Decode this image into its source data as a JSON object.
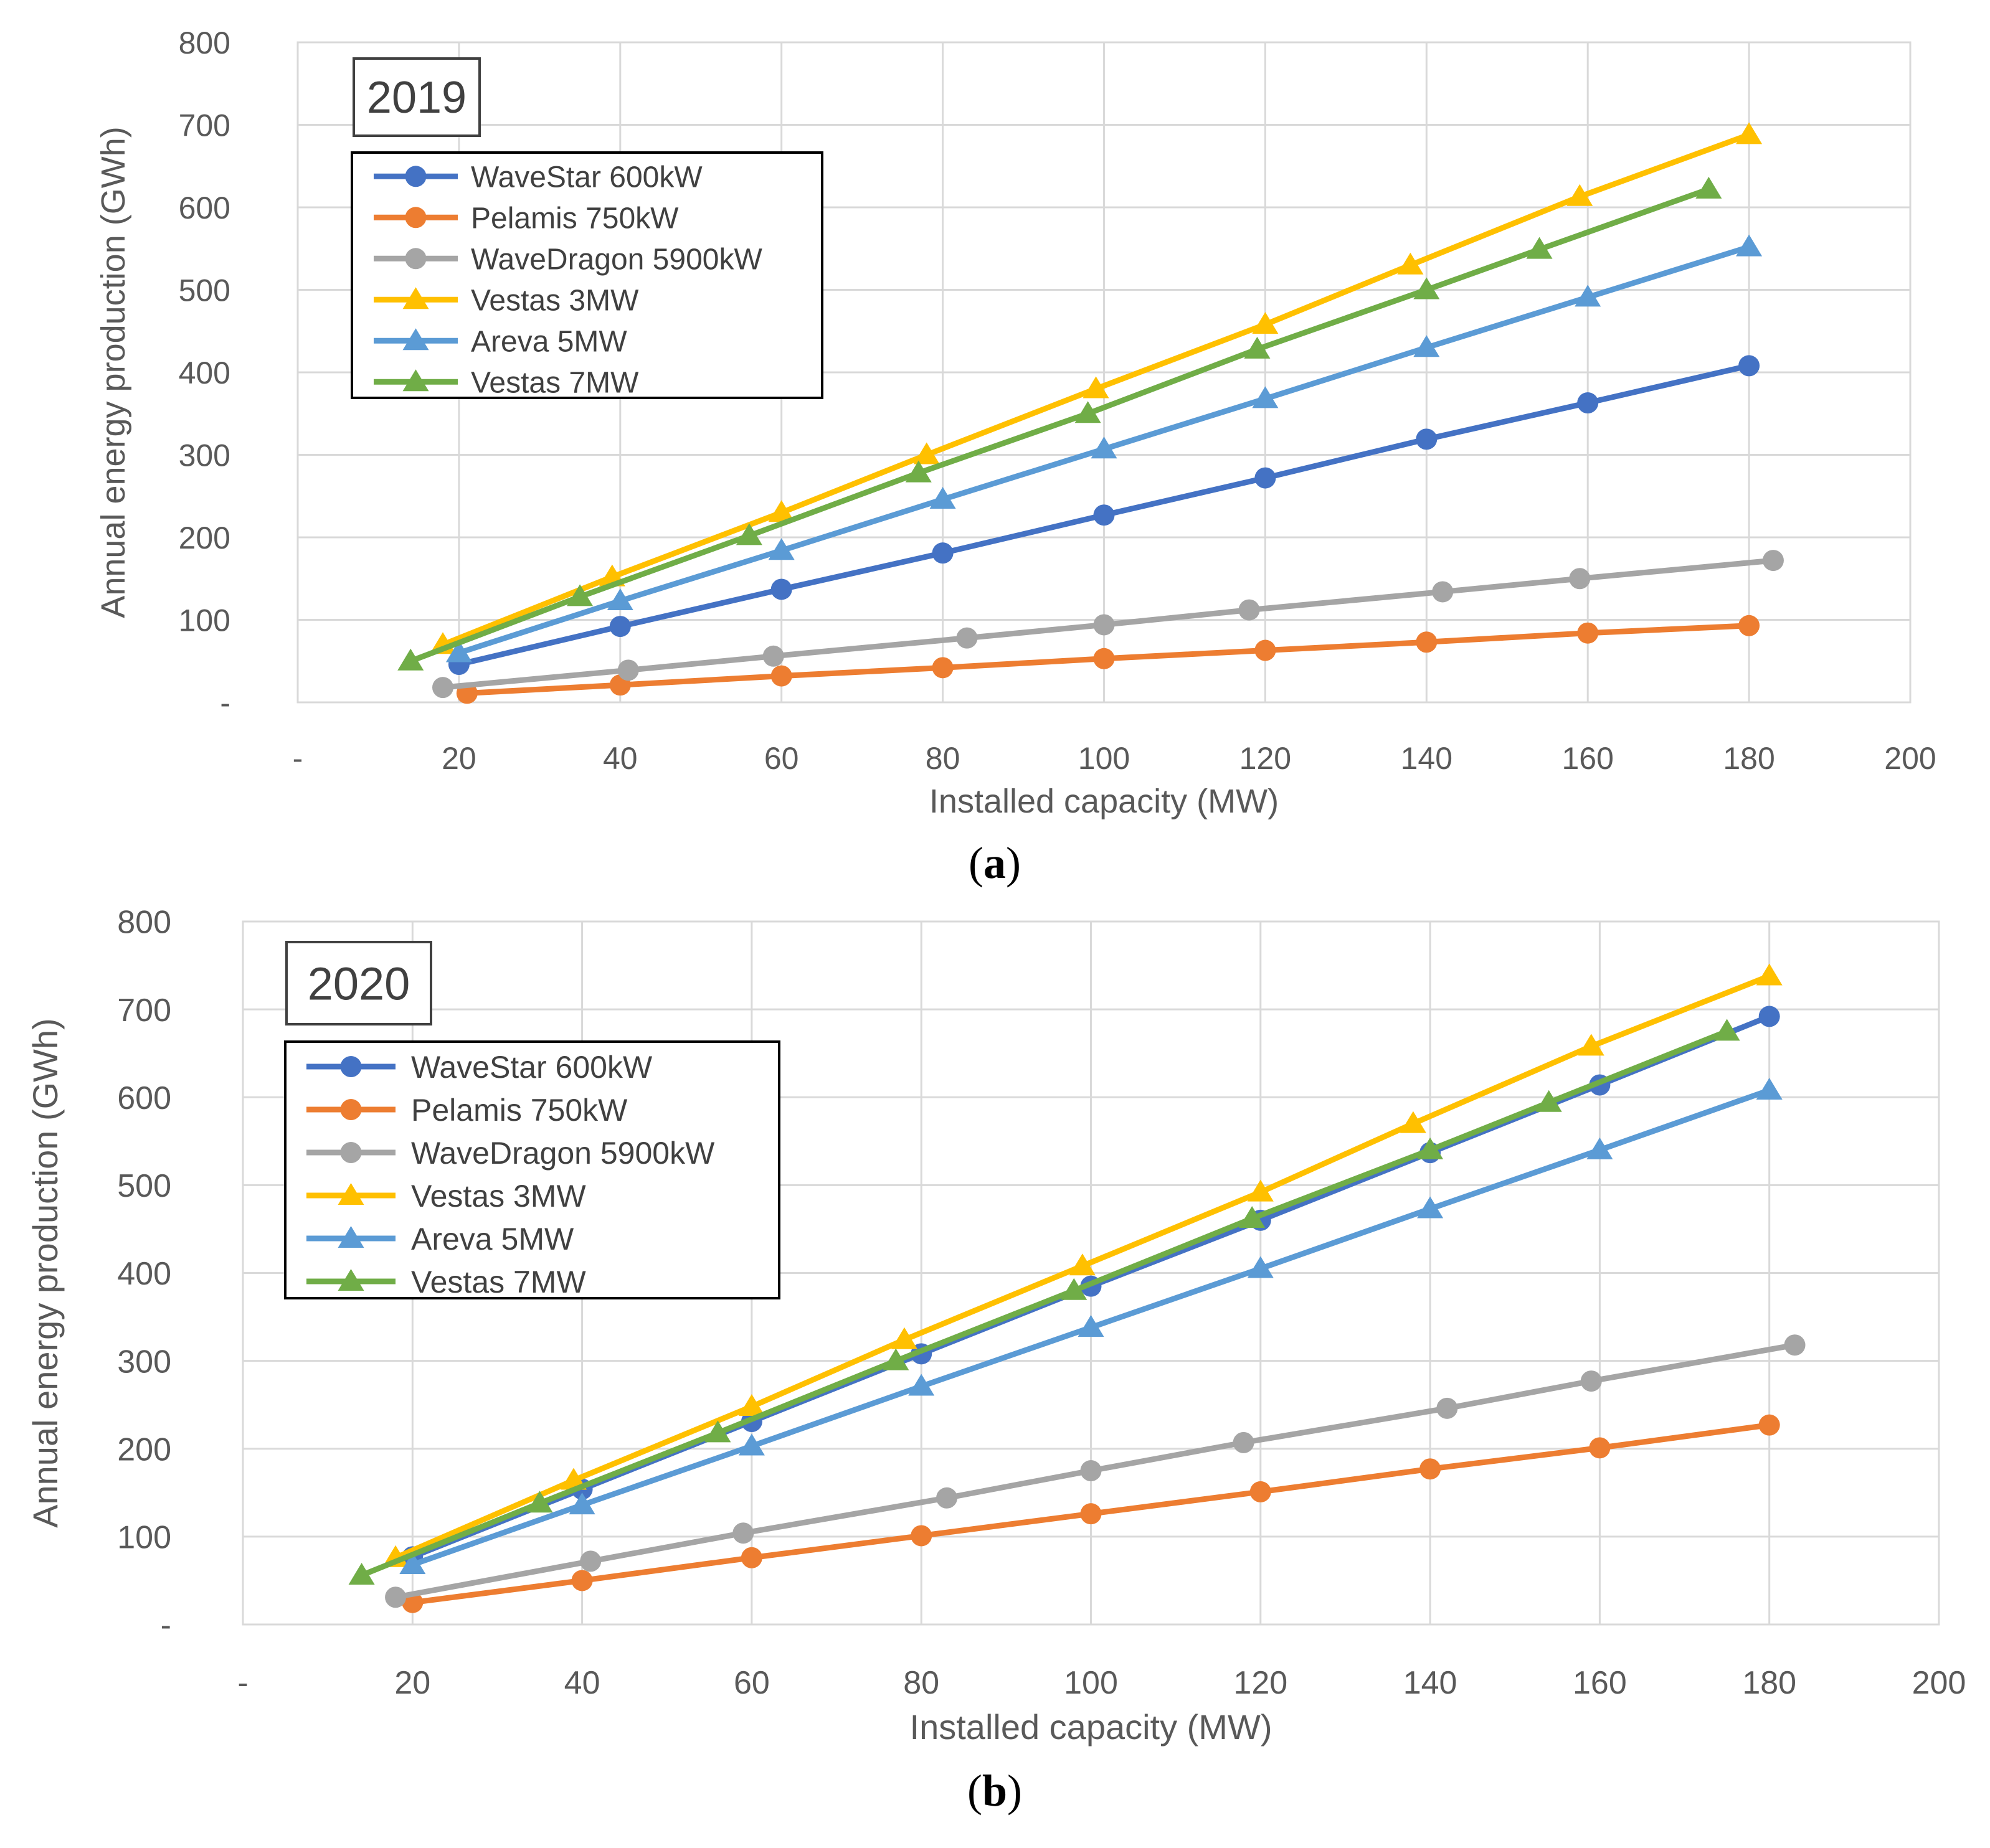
{
  "chart_data": [
    {
      "type": "line",
      "title": "2019",
      "xlabel": "Installed capacity (MW)",
      "ylabel": "Annual energy production (GWh)",
      "xlim": [
        0,
        200
      ],
      "ylim": [
        0,
        800
      ],
      "x_tick_labels": [
        "-",
        "20",
        "40",
        "60",
        "80",
        "100",
        "120",
        "140",
        "160",
        "180",
        "200"
      ],
      "y_tick_labels": [
        "-",
        "100",
        "200",
        "300",
        "400",
        "500",
        "600",
        "700",
        "800"
      ],
      "caption_letter": "a",
      "series": [
        {
          "name": "WaveStar 600kW",
          "color": "#4472C4",
          "marker": "circle",
          "x": [
            20,
            40,
            60,
            80,
            100,
            120,
            140,
            160,
            180
          ],
          "y": [
            46,
            92,
            137,
            181,
            227,
            272,
            319,
            363,
            408
          ]
        },
        {
          "name": "Pelamis 750kW",
          "color": "#ED7D31",
          "marker": "circle",
          "x": [
            21,
            40,
            60,
            80,
            100,
            120,
            140,
            160,
            180
          ],
          "y": [
            11,
            21,
            32,
            42,
            53,
            63,
            73,
            84,
            93
          ]
        },
        {
          "name": "WaveDragon 5900kW",
          "color": "#A5A5A5",
          "marker": "circle",
          "x": [
            18,
            41,
            59,
            83,
            100,
            118,
            142,
            159,
            183
          ],
          "y": [
            18,
            39,
            56,
            78,
            94,
            112,
            134,
            150,
            172
          ]
        },
        {
          "name": "Vestas 3MW",
          "color": "#FFC000",
          "marker": "triangle",
          "x": [
            18,
            39,
            60,
            78,
            99,
            120,
            138,
            159,
            180
          ],
          "y": [
            70,
            152,
            230,
            300,
            380,
            458,
            530,
            613,
            688
          ]
        },
        {
          "name": "Areva 5MW",
          "color": "#5B9BD5",
          "marker": "triangle",
          "x": [
            20,
            40,
            60,
            80,
            100,
            120,
            140,
            160,
            180
          ],
          "y": [
            60,
            123,
            184,
            246,
            307,
            368,
            430,
            491,
            552
          ]
        },
        {
          "name": "Vestas 7MW",
          "color": "#70AD47",
          "marker": "triangle",
          "x": [
            14,
            35,
            56,
            77,
            98,
            119,
            140,
            154,
            175
          ],
          "y": [
            50,
            128,
            202,
            278,
            350,
            428,
            500,
            549,
            622
          ]
        }
      ]
    },
    {
      "type": "line",
      "title": "2020",
      "xlabel": "Installed capacity (MW)",
      "ylabel": "Annual energy production (GWh)",
      "xlim": [
        0,
        200
      ],
      "ylim": [
        0,
        800
      ],
      "x_tick_labels": [
        "-",
        "20",
        "40",
        "60",
        "80",
        "100",
        "120",
        "140",
        "160",
        "180",
        "200"
      ],
      "y_tick_labels": [
        "-",
        "100",
        "200",
        "300",
        "400",
        "500",
        "600",
        "700",
        "800"
      ],
      "caption_letter": "b",
      "series": [
        {
          "name": "WaveStar 600kW",
          "color": "#4472C4",
          "marker": "circle",
          "x": [
            20,
            40,
            60,
            80,
            100,
            120,
            140,
            160,
            180
          ],
          "y": [
            77,
            154,
            231,
            308,
            385,
            460,
            537,
            614,
            692
          ]
        },
        {
          "name": "Pelamis 750kW",
          "color": "#ED7D31",
          "marker": "circle",
          "x": [
            20,
            40,
            60,
            80,
            100,
            120,
            140,
            160,
            180
          ],
          "y": [
            25,
            50,
            76,
            101,
            126,
            151,
            177,
            201,
            227
          ]
        },
        {
          "name": "WaveDragon 5900kW",
          "color": "#A5A5A5",
          "marker": "circle",
          "x": [
            18,
            41,
            59,
            83,
            100,
            118,
            142,
            159,
            183
          ],
          "y": [
            31,
            72,
            104,
            144,
            175,
            207,
            246,
            277,
            318
          ]
        },
        {
          "name": "Vestas 3MW",
          "color": "#FFC000",
          "marker": "triangle",
          "x": [
            18,
            39,
            60,
            78,
            99,
            120,
            138,
            159,
            180
          ],
          "y": [
            76,
            164,
            248,
            324,
            408,
            492,
            570,
            658,
            738
          ]
        },
        {
          "name": "Areva 5MW",
          "color": "#5B9BD5",
          "marker": "triangle",
          "x": [
            20,
            40,
            60,
            80,
            100,
            120,
            140,
            160,
            180
          ],
          "y": [
            68,
            136,
            203,
            271,
            338,
            405,
            473,
            540,
            608
          ]
        },
        {
          "name": "Vestas 7MW",
          "color": "#70AD47",
          "marker": "triangle",
          "x": [
            14,
            35,
            56,
            77,
            98,
            119,
            140,
            154,
            175
          ],
          "y": [
            56,
            138,
            218,
            300,
            380,
            462,
            540,
            594,
            675
          ]
        }
      ]
    }
  ]
}
